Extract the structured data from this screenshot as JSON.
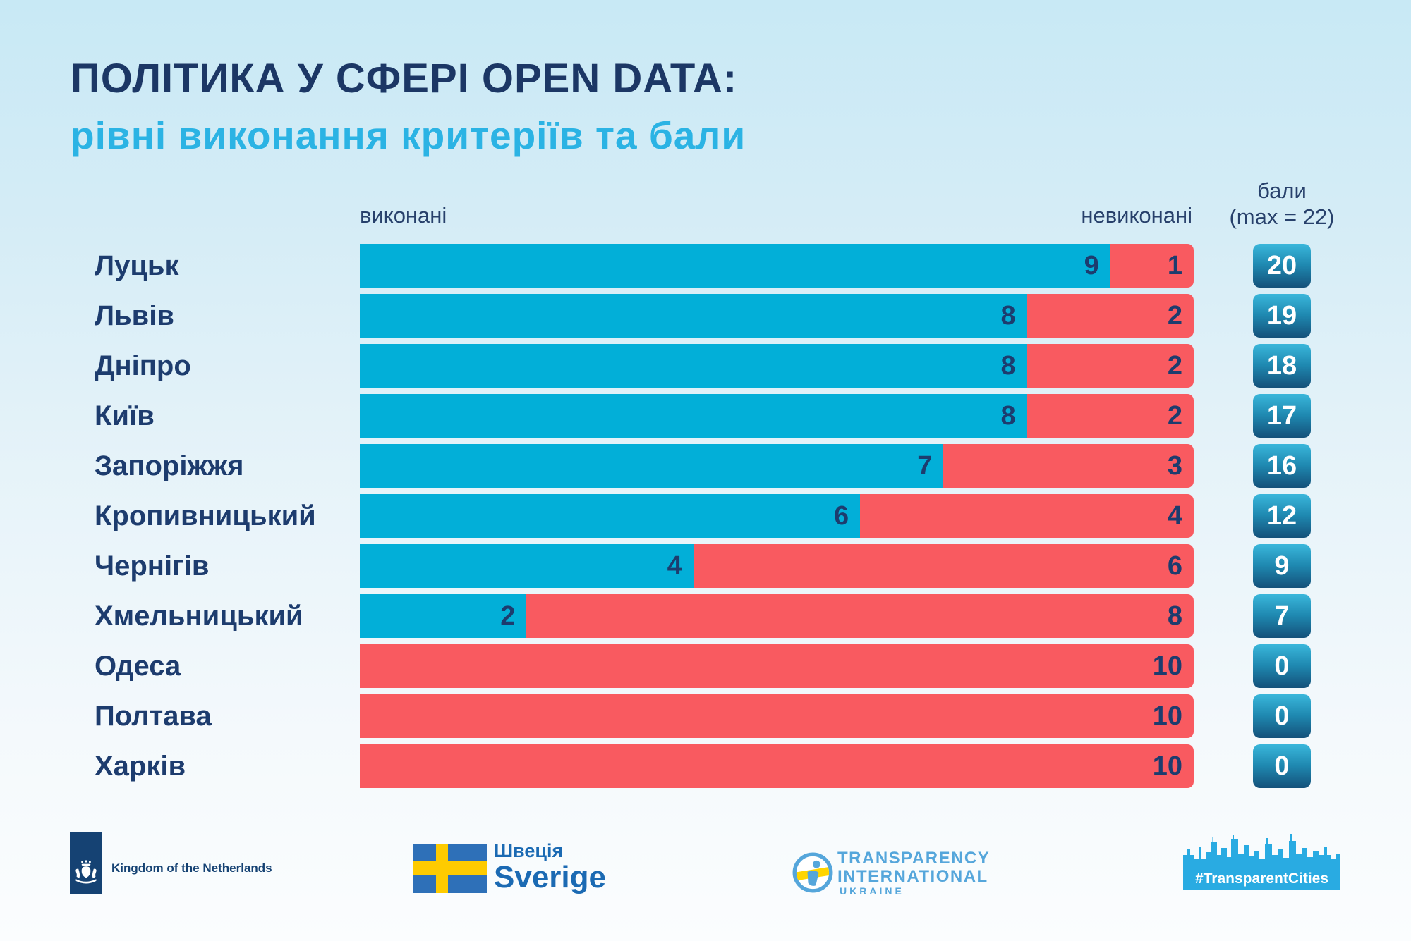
{
  "chart_data": {
    "type": "bar",
    "orientation": "horizontal",
    "stacked": true,
    "title": "ПОЛІТИКА У СФЕРІ OPEN DATA:",
    "subtitle": "рівні виконання критеріїв та бали",
    "categories": [
      "Луцьк",
      "Львів",
      "Дніпро",
      "Київ",
      "Запоріжжя",
      "Кропивницький",
      "Чернігів",
      "Хмельницький",
      "Одеса",
      "Полтава",
      "Харків"
    ],
    "series": [
      {
        "name": "виконані",
        "color": "#02afd8",
        "values": [
          9,
          8,
          8,
          8,
          7,
          6,
          4,
          2,
          0,
          0,
          0
        ]
      },
      {
        "name": "невиконані",
        "color": "#f95a60",
        "values": [
          1,
          2,
          2,
          2,
          3,
          4,
          6,
          8,
          10,
          10,
          10
        ]
      }
    ],
    "total_criteria_per_city": 10,
    "scores": {
      "label_line1": "бали",
      "label_line2": "(max = 22)",
      "max": 22,
      "values": [
        20,
        19,
        18,
        17,
        16,
        12,
        9,
        7,
        0,
        0,
        0
      ]
    },
    "legend_position": "column-headers",
    "grid": false
  },
  "colors": {
    "title_navy": "#1c3765",
    "subtitle_cyan": "#2bb3e4",
    "bar_blue": "#02afd8",
    "bar_red": "#f95a60",
    "number_navy": "#1d3c6e",
    "badge_gradient_top": "#3ab7db",
    "badge_gradient_bottom": "#14517a",
    "background_top": "#c8e9f5",
    "background_bottom": "#fbfdfe"
  },
  "footer": {
    "netherlands": {
      "text": "Kingdom of the Netherlands"
    },
    "sweden": {
      "line1": "Швеція",
      "line2": "Sverige"
    },
    "transparency_international": {
      "line1": "TRANSPARENCY",
      "line2": "INTERNATIONAL",
      "line3": "UKRAINE"
    },
    "transparent_cities": {
      "text": "#TransparentCities"
    }
  }
}
